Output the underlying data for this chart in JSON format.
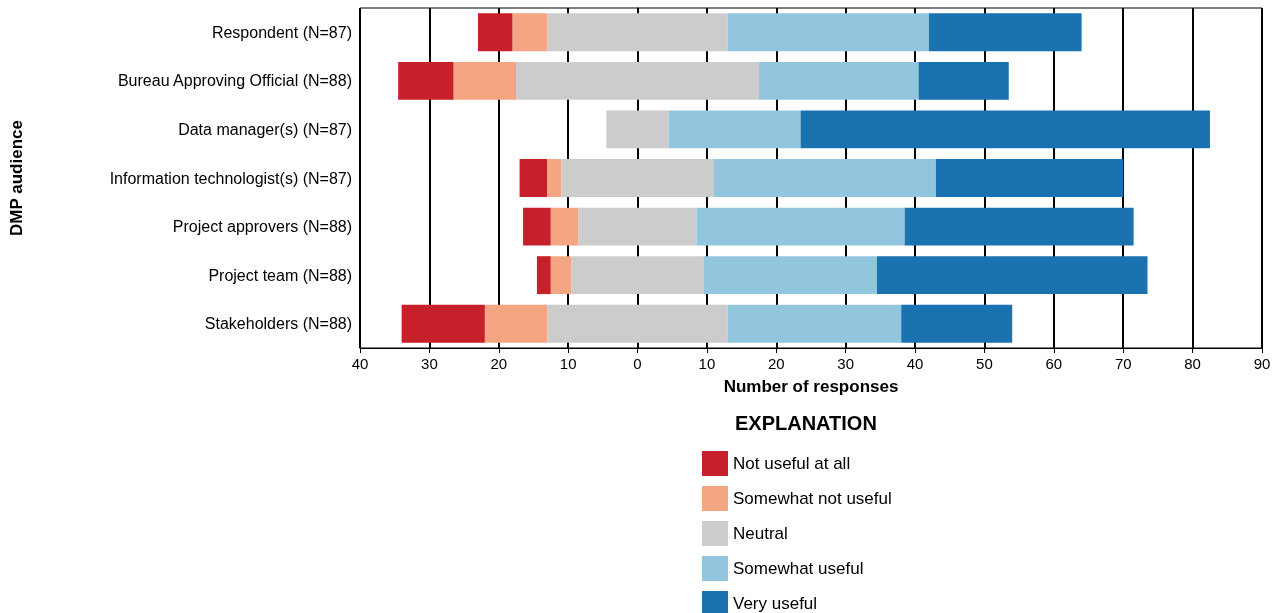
{
  "chart_data": {
    "type": "bar",
    "orientation": "horizontal",
    "xlabel": "Number of responses",
    "ylabel": "DMP audience",
    "legend_title": "EXPLANATION",
    "categories": [
      "Respondent (N=87)",
      "Bureau Approving Official (N=88)",
      "Data manager(s) (N=87)",
      "Information technologist(s) (N=87)",
      "Project approvers (N=88)",
      "Project team (N=88)",
      "Stakeholders (N=88)"
    ],
    "series": [
      {
        "name": "Not useful at all",
        "color": "#c8202a",
        "base": [
          -23,
          -34.5,
          null,
          -17,
          -16.5,
          -14.5,
          -34
        ],
        "values": [
          5,
          8,
          null,
          4,
          4,
          2,
          12
        ]
      },
      {
        "name": "Somewhat not useful",
        "color": "#f4a582",
        "base": [
          -18,
          -26.5,
          null,
          -13,
          -12.5,
          -12.5,
          -22
        ],
        "values": [
          5,
          9,
          null,
          2,
          4,
          3,
          9
        ]
      },
      {
        "name": "Neutral",
        "color": "#cccccc",
        "base": [
          -13,
          -17.5,
          -4.5,
          -11,
          -8.5,
          -9.5,
          -13
        ],
        "values": [
          26,
          35,
          9,
          22,
          17,
          19,
          26
        ]
      },
      {
        "name": "Somewhat useful",
        "color": "#92c5de",
        "base": [
          13,
          17.5,
          4.5,
          11,
          8.5,
          9.5,
          13
        ],
        "values": [
          29,
          23,
          19,
          32,
          30,
          25,
          25
        ]
      },
      {
        "name": "Very useful",
        "color": "#1a72b0",
        "base": [
          42,
          40.5,
          23.5,
          43,
          38.5,
          34.5,
          38
        ],
        "values": [
          22,
          13,
          59,
          27,
          33,
          39,
          16
        ]
      }
    ],
    "xlim": [
      -40,
      90
    ],
    "xticks": [
      {
        "value": -40,
        "label": "40"
      },
      {
        "value": -30,
        "label": "30"
      },
      {
        "value": -20,
        "label": "20"
      },
      {
        "value": -10,
        "label": "10"
      },
      0,
      10,
      20,
      30,
      40,
      50,
      60,
      70,
      80,
      90
    ],
    "grid": "x",
    "legend": "bottom"
  }
}
